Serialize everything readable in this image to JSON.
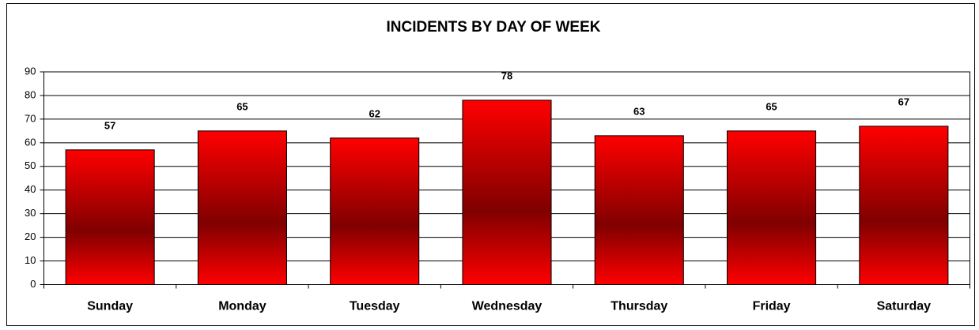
{
  "chart_data": {
    "type": "bar",
    "title": "INCIDENTS BY DAY OF WEEK",
    "categories": [
      "Sunday",
      "Monday",
      "Tuesday",
      "Wednesday",
      "Thursday",
      "Friday",
      "Saturday"
    ],
    "values": [
      57,
      65,
      62,
      78,
      63,
      65,
      67
    ],
    "color": "#ff0000",
    "ylim": [
      0,
      90
    ],
    "yticks": [
      0,
      10,
      20,
      30,
      40,
      50,
      60,
      70,
      80,
      90
    ],
    "grid": true
  }
}
